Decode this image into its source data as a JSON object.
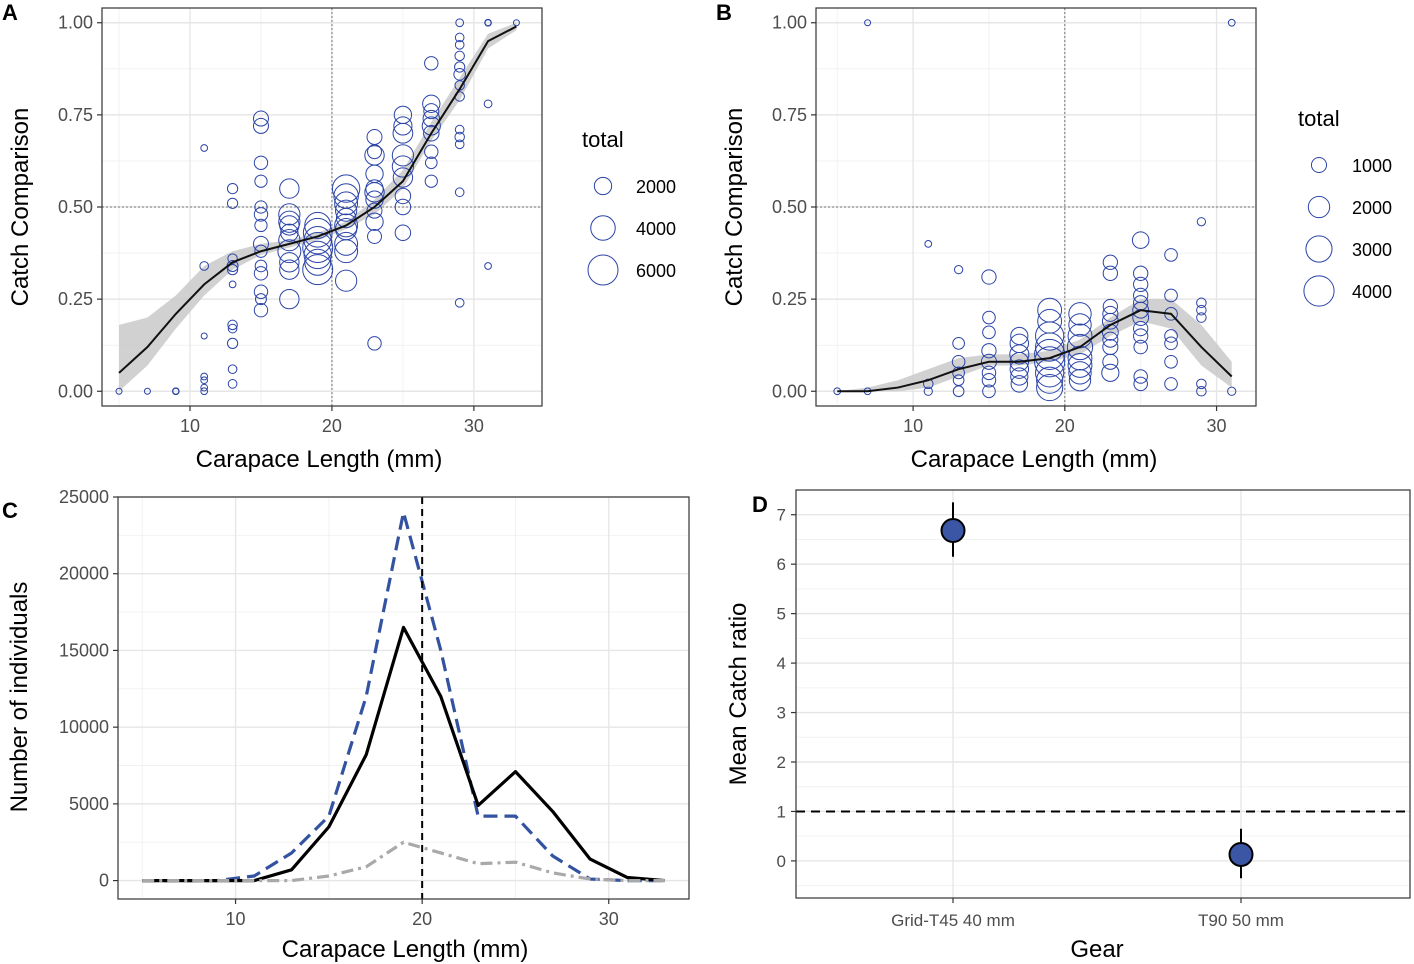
{
  "chart_data": [
    {
      "panel": "A",
      "type": "scatter",
      "xlabel": "Carapace Length (mm)",
      "ylabel": "Catch Comparison",
      "xlim": [
        3.8,
        34.8
      ],
      "ylim": [
        -0.04,
        1.04
      ],
      "xticks": [
        10,
        20,
        30
      ],
      "xtick_labels": [
        "10",
        "20",
        "30"
      ],
      "yticks": [
        0,
        0.25,
        0.5,
        0.75,
        1.0
      ],
      "ytick_labels": [
        "0.00",
        "0.25",
        "0.50",
        "0.75",
        "1.00"
      ],
      "reference_lines": {
        "x": 20,
        "y": 0.5
      },
      "size_legend": {
        "title": "total",
        "values": [
          2000,
          4000,
          6000
        ],
        "labels": [
          "2000",
          "4000",
          "6000"
        ],
        "max_total": 6000
      },
      "points": [
        [
          5,
          0,
          200
        ],
        [
          7,
          0,
          200
        ],
        [
          9,
          0,
          300
        ],
        [
          9,
          0,
          200
        ],
        [
          11,
          0.66,
          300
        ],
        [
          11,
          0.34,
          500
        ],
        [
          11,
          0.15,
          200
        ],
        [
          11,
          0.04,
          300
        ],
        [
          11,
          0.03,
          300
        ],
        [
          11,
          0.01,
          300
        ],
        [
          11,
          0,
          300
        ],
        [
          13,
          0.55,
          700
        ],
        [
          13,
          0.51,
          700
        ],
        [
          13,
          0.36,
          600
        ],
        [
          13,
          0.34,
          800
        ],
        [
          13,
          0.33,
          700
        ],
        [
          13,
          0.29,
          300
        ],
        [
          13,
          0.18,
          600
        ],
        [
          13,
          0.17,
          500
        ],
        [
          13,
          0.13,
          700
        ],
        [
          13,
          0.06,
          500
        ],
        [
          13,
          0.02,
          500
        ],
        [
          15,
          0.74,
          1500
        ],
        [
          15,
          0.72,
          1500
        ],
        [
          15,
          0.62,
          1200
        ],
        [
          15,
          0.57,
          1000
        ],
        [
          15,
          0.5,
          1000
        ],
        [
          15,
          0.48,
          1200
        ],
        [
          15,
          0.45,
          1000
        ],
        [
          15,
          0.4,
          1500
        ],
        [
          15,
          0.38,
          1000
        ],
        [
          15,
          0.34,
          900
        ],
        [
          15,
          0.32,
          1200
        ],
        [
          15,
          0.27,
          1200
        ],
        [
          15,
          0.25,
          800
        ],
        [
          15,
          0.22,
          1200
        ],
        [
          17,
          0.55,
          2500
        ],
        [
          17,
          0.48,
          3000
        ],
        [
          17,
          0.46,
          3000
        ],
        [
          17,
          0.45,
          2500
        ],
        [
          17,
          0.43,
          2000
        ],
        [
          17,
          0.41,
          3000
        ],
        [
          17,
          0.38,
          3500
        ],
        [
          17,
          0.35,
          2500
        ],
        [
          17,
          0.33,
          2500
        ],
        [
          17,
          0.25,
          2500
        ],
        [
          19,
          0.45,
          4500
        ],
        [
          19,
          0.43,
          5500
        ],
        [
          19,
          0.41,
          5000
        ],
        [
          19,
          0.39,
          6000
        ],
        [
          19,
          0.37,
          5000
        ],
        [
          19,
          0.35,
          4500
        ],
        [
          19,
          0.33,
          6000
        ],
        [
          21,
          0.55,
          5000
        ],
        [
          21,
          0.53,
          4000
        ],
        [
          21,
          0.51,
          3500
        ],
        [
          21,
          0.49,
          3000
        ],
        [
          21,
          0.47,
          2500
        ],
        [
          21,
          0.45,
          3500
        ],
        [
          21,
          0.44,
          3000
        ],
        [
          21,
          0.4,
          3500
        ],
        [
          21,
          0.38,
          3500
        ],
        [
          21,
          0.3,
          3000
        ],
        [
          23,
          0.69,
          1500
        ],
        [
          23,
          0.65,
          1300
        ],
        [
          23,
          0.64,
          2500
        ],
        [
          23,
          0.59,
          2000
        ],
        [
          23,
          0.55,
          2000
        ],
        [
          23,
          0.54,
          2500
        ],
        [
          23,
          0.52,
          2000
        ],
        [
          23,
          0.49,
          1500
        ],
        [
          23,
          0.46,
          2000
        ],
        [
          23,
          0.42,
          1300
        ],
        [
          23,
          0.13,
          1200
        ],
        [
          25,
          0.75,
          2000
        ],
        [
          25,
          0.72,
          2200
        ],
        [
          25,
          0.7,
          2600
        ],
        [
          25,
          0.64,
          3000
        ],
        [
          25,
          0.61,
          3000
        ],
        [
          25,
          0.58,
          2500
        ],
        [
          25,
          0.53,
          1600
        ],
        [
          25,
          0.5,
          1600
        ],
        [
          25,
          0.43,
          1600
        ],
        [
          27,
          0.89,
          1200
        ],
        [
          27,
          0.78,
          2000
        ],
        [
          27,
          0.76,
          1500
        ],
        [
          27,
          0.74,
          1800
        ],
        [
          27,
          0.72,
          2200
        ],
        [
          27,
          0.7,
          1600
        ],
        [
          27,
          0.65,
          1200
        ],
        [
          27,
          0.62,
          900
        ],
        [
          27,
          0.57,
          1000
        ],
        [
          29,
          1.0,
          400
        ],
        [
          29,
          0.96,
          500
        ],
        [
          29,
          0.94,
          500
        ],
        [
          29,
          0.91,
          600
        ],
        [
          29,
          0.88,
          700
        ],
        [
          29,
          0.86,
          900
        ],
        [
          29,
          0.83,
          600
        ],
        [
          29,
          0.8,
          600
        ],
        [
          29,
          0.71,
          500
        ],
        [
          29,
          0.69,
          600
        ],
        [
          29,
          0.67,
          500
        ],
        [
          29,
          0.54,
          500
        ],
        [
          29,
          0.24,
          500
        ],
        [
          31,
          1.0,
          300
        ],
        [
          31,
          1.0,
          200
        ],
        [
          31,
          0.78,
          400
        ],
        [
          31,
          0.34,
          300
        ],
        [
          33,
          1.0,
          200
        ]
      ],
      "smooth_x": [
        5,
        7,
        9,
        11,
        13,
        15,
        17,
        19,
        21,
        23,
        25,
        27,
        29,
        31,
        33
      ],
      "smooth_y": [
        0.05,
        0.12,
        0.21,
        0.29,
        0.35,
        0.38,
        0.4,
        0.42,
        0.45,
        0.5,
        0.57,
        0.7,
        0.82,
        0.95,
        0.99
      ],
      "band_lower": [
        0.0,
        0.07,
        0.17,
        0.26,
        0.33,
        0.37,
        0.39,
        0.41,
        0.44,
        0.48,
        0.55,
        0.68,
        0.79,
        0.93,
        0.98
      ],
      "band_upper": [
        0.18,
        0.2,
        0.26,
        0.34,
        0.38,
        0.4,
        0.41,
        0.43,
        0.46,
        0.52,
        0.6,
        0.73,
        0.85,
        0.97,
        1.0
      ]
    },
    {
      "panel": "B",
      "type": "scatter",
      "xlabel": "Carapace Length (mm)",
      "ylabel": "Catch Comparison",
      "xlim": [
        3.6,
        32.6
      ],
      "ylim": [
        -0.04,
        1.04
      ],
      "xticks": [
        10,
        20,
        30
      ],
      "xtick_labels": [
        "10",
        "20",
        "30"
      ],
      "yticks": [
        0,
        0.25,
        0.5,
        0.75,
        1.0
      ],
      "ytick_labels": [
        "0.00",
        "0.25",
        "0.50",
        "0.75",
        "1.00"
      ],
      "reference_lines": {
        "x": 20,
        "y": 0.5
      },
      "size_legend": {
        "title": "total",
        "values": [
          1000,
          2000,
          3000,
          4000
        ],
        "labels": [
          "1000",
          "2000",
          "3000",
          "4000"
        ],
        "max_total": 4500
      },
      "points": [
        [
          5,
          0,
          200
        ],
        [
          7,
          1.0,
          150
        ],
        [
          7,
          0,
          200
        ],
        [
          11,
          0.4,
          200
        ],
        [
          11,
          0.02,
          400
        ],
        [
          11,
          0,
          300
        ],
        [
          13,
          0.33,
          300
        ],
        [
          13,
          0.13,
          600
        ],
        [
          13,
          0.08,
          700
        ],
        [
          13,
          0.05,
          600
        ],
        [
          13,
          0.03,
          500
        ],
        [
          13,
          0,
          500
        ],
        [
          15,
          0.31,
          900
        ],
        [
          15,
          0.2,
          700
        ],
        [
          15,
          0.16,
          700
        ],
        [
          15,
          0.11,
          900
        ],
        [
          15,
          0.08,
          1000
        ],
        [
          15,
          0.05,
          800
        ],
        [
          15,
          0.03,
          800
        ],
        [
          15,
          0,
          700
        ],
        [
          17,
          0.15,
          1300
        ],
        [
          17,
          0.13,
          1500
        ],
        [
          17,
          0.1,
          1600
        ],
        [
          17,
          0.08,
          1500
        ],
        [
          17,
          0.06,
          1500
        ],
        [
          17,
          0.04,
          1300
        ],
        [
          17,
          0.02,
          1200
        ],
        [
          19,
          0.22,
          2500
        ],
        [
          19,
          0.19,
          2500
        ],
        [
          19,
          0.15,
          3500
        ],
        [
          19,
          0.12,
          3500
        ],
        [
          19,
          0.1,
          4000
        ],
        [
          19,
          0.08,
          4000
        ],
        [
          19,
          0.05,
          3500
        ],
        [
          19,
          0.03,
          3000
        ],
        [
          19,
          0.01,
          3000
        ],
        [
          21,
          0.21,
          2200
        ],
        [
          21,
          0.18,
          2200
        ],
        [
          21,
          0.15,
          2500
        ],
        [
          21,
          0.12,
          2800
        ],
        [
          21,
          0.09,
          2500
        ],
        [
          21,
          0.07,
          2500
        ],
        [
          21,
          0.05,
          2200
        ],
        [
          21,
          0.03,
          2000
        ],
        [
          23,
          0.35,
          900
        ],
        [
          23,
          0.32,
          900
        ],
        [
          23,
          0.23,
          900
        ],
        [
          23,
          0.21,
          1000
        ],
        [
          23,
          0.19,
          1100
        ],
        [
          23,
          0.16,
          1100
        ],
        [
          23,
          0.14,
          1000
        ],
        [
          23,
          0.12,
          1000
        ],
        [
          23,
          0.08,
          1000
        ],
        [
          23,
          0.05,
          1300
        ],
        [
          25,
          0.41,
          1200
        ],
        [
          25,
          0.32,
          900
        ],
        [
          25,
          0.29,
          900
        ],
        [
          25,
          0.26,
          900
        ],
        [
          25,
          0.24,
          900
        ],
        [
          25,
          0.22,
          1100
        ],
        [
          25,
          0.2,
          1100
        ],
        [
          25,
          0.17,
          900
        ],
        [
          25,
          0.15,
          900
        ],
        [
          25,
          0.12,
          800
        ],
        [
          25,
          0.04,
          800
        ],
        [
          25,
          0.02,
          800
        ],
        [
          27,
          0.37,
          700
        ],
        [
          27,
          0.26,
          700
        ],
        [
          27,
          0.21,
          700
        ],
        [
          27,
          0.15,
          700
        ],
        [
          27,
          0.13,
          700
        ],
        [
          27,
          0.08,
          700
        ],
        [
          27,
          0.02,
          700
        ],
        [
          29,
          0.46,
          300
        ],
        [
          29,
          0.24,
          400
        ],
        [
          29,
          0.22,
          400
        ],
        [
          29,
          0.2,
          400
        ],
        [
          29,
          0.02,
          400
        ],
        [
          29,
          0,
          400
        ],
        [
          31,
          1.0,
          200
        ],
        [
          31,
          0,
          300
        ]
      ],
      "smooth_x": [
        5,
        7,
        9,
        11,
        13,
        15,
        17,
        19,
        21,
        23,
        25,
        27,
        29,
        31
      ],
      "smooth_y": [
        0.0,
        0.0,
        0.01,
        0.03,
        0.06,
        0.08,
        0.08,
        0.09,
        0.12,
        0.18,
        0.22,
        0.21,
        0.12,
        0.04
      ],
      "band_lower": [
        0.0,
        0.0,
        0.0,
        0.01,
        0.04,
        0.07,
        0.07,
        0.08,
        0.1,
        0.15,
        0.19,
        0.17,
        0.07,
        0.01
      ],
      "band_upper": [
        0.0,
        0.01,
        0.03,
        0.06,
        0.09,
        0.1,
        0.1,
        0.11,
        0.14,
        0.2,
        0.25,
        0.25,
        0.18,
        0.08
      ]
    },
    {
      "panel": "C",
      "type": "line",
      "xlabel": "Carapace Length (mm)",
      "ylabel": "Number of individuals",
      "xlim": [
        3.7,
        34.3
      ],
      "ylim": [
        -1200,
        25000
      ],
      "xticks": [
        10,
        20,
        30
      ],
      "xtick_labels": [
        "10",
        "20",
        "30"
      ],
      "yticks": [
        0,
        5000,
        10000,
        15000,
        20000,
        25000
      ],
      "ytick_labels": [
        "0",
        "5000",
        "10000",
        "15000",
        "20000",
        "25000"
      ],
      "reference_lines": {
        "x": 20
      },
      "x": [
        5,
        7,
        9,
        11,
        13,
        15,
        17,
        19,
        21,
        23,
        25,
        27,
        29,
        31,
        33
      ],
      "series": [
        {
          "name": "dashed",
          "color": "#3352a0",
          "dash": "dashed",
          "values": [
            0,
            0,
            0,
            300,
            1800,
            4200,
            12000,
            24000,
            15000,
            4200,
            4200,
            1600,
            100,
            0,
            0
          ]
        },
        {
          "name": "solid",
          "color": "#000000",
          "dash": "solid",
          "values": [
            0,
            0,
            0,
            0,
            700,
            3500,
            8200,
            16500,
            12000,
            4900,
            7100,
            4500,
            1400,
            200,
            0
          ]
        },
        {
          "name": "dotdash",
          "color": "#a9a9a9",
          "dash": "dotdash",
          "values": [
            0,
            0,
            0,
            0,
            0,
            300,
            900,
            2500,
            1800,
            1100,
            1200,
            500,
            100,
            0,
            0
          ]
        }
      ]
    },
    {
      "panel": "D",
      "type": "scatter",
      "xlabel": "Gear",
      "ylabel": "Mean Catch ratio",
      "categories": [
        "Grid-T45 40 mm",
        "T90 50 mm"
      ],
      "values": [
        6.68,
        0.13
      ],
      "error_low": [
        6.15,
        -0.35
      ],
      "error_high": [
        7.25,
        0.65
      ],
      "ylim": [
        -0.75,
        7.5
      ],
      "yticks": [
        0,
        1,
        2,
        3,
        4,
        5,
        6,
        7
      ],
      "ytick_labels": [
        "0",
        "1",
        "2",
        "3",
        "4",
        "5",
        "6",
        "7"
      ],
      "reference_lines": {
        "y": 1
      },
      "point_color": "#3a56a5"
    }
  ]
}
